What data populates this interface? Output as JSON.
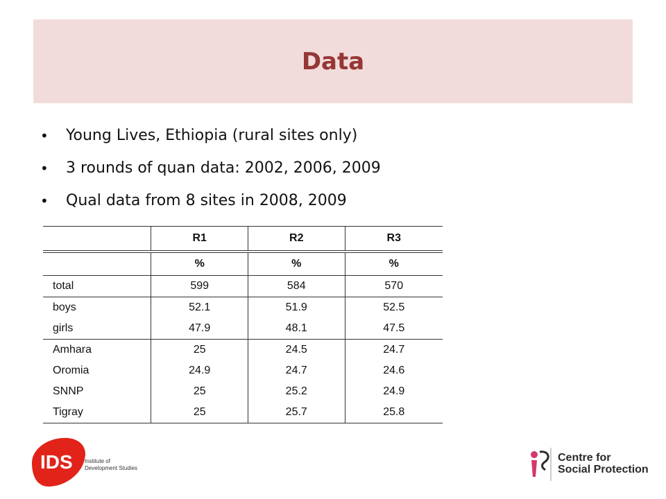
{
  "slide": {
    "title": "Data",
    "bullets": [
      "Young Lives, Ethiopia (rural sites only)",
      "3 rounds of quan data: 2002, 2006, 2009",
      "Qual data from 8 sites in 2008, 2009"
    ]
  },
  "table": {
    "columns": [
      "",
      "R1",
      "R2",
      "R3"
    ],
    "units": [
      "",
      "%",
      "%",
      "%"
    ],
    "rows": [
      {
        "label": "total",
        "values": [
          "599",
          "584",
          "570"
        ]
      },
      {
        "label": "boys",
        "values": [
          "52.1",
          "51.9",
          "52.5"
        ]
      },
      {
        "label": "girls",
        "values": [
          "47.9",
          "48.1",
          "47.5"
        ]
      },
      {
        "label": "Amhara",
        "values": [
          "25",
          "24.5",
          "24.7"
        ]
      },
      {
        "label": "Oromia",
        "values": [
          "24.9",
          "24.7",
          "24.6"
        ]
      },
      {
        "label": "SNNP",
        "values": [
          "25",
          "25.2",
          "24.9"
        ]
      },
      {
        "label": "Tigray",
        "values": [
          "25",
          "25.7",
          "25.8"
        ]
      }
    ]
  },
  "logos": {
    "ids": {
      "mark": "IDS",
      "line1": "Institute of",
      "line2": "Development Studies"
    },
    "csp": {
      "line1": "Centre for",
      "line2": "Social Protection"
    }
  },
  "colors": {
    "title": "#953735",
    "title_band": "#f2dcdb",
    "ids_red": "#e2231a",
    "csp_pink": "#d2386c"
  }
}
